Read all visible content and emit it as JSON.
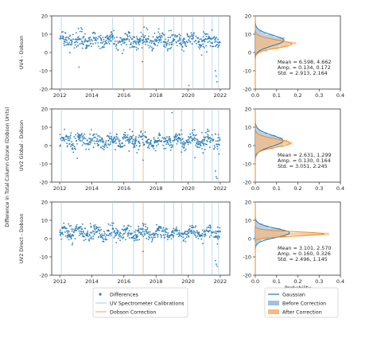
{
  "figure": {
    "shared_ylabel": "Difference in Total Column Ozone (Dobson Units)",
    "hist_xlabel": "Probability",
    "legend_left": [
      "Differences",
      "UV Spectrometer Calibrations",
      "Dobson Correction"
    ],
    "legend_right": [
      "Gaussian",
      "Before Correction",
      "After Correction"
    ]
  },
  "colors": {
    "points": "#2e7fb8",
    "calibration": "#a9cbe8",
    "dobson": "#f2a35e",
    "gaussian": "#1f77b4",
    "before": "#9dc0e4",
    "after": "#f7b97c",
    "after_line": "#f08a24",
    "axis": "#333333"
  },
  "chart_data": [
    {
      "type": "scatter",
      "panel": "UV4",
      "ylabel": "UV4 - Dobson",
      "xlim": [
        2011.5,
        2022.6
      ],
      "ylim": [
        -20,
        20
      ],
      "xticks": [
        2012,
        2014,
        2016,
        2018,
        2020,
        2022
      ],
      "yticks": [
        -20,
        -10,
        0,
        10,
        20
      ],
      "calibrations": [
        2012.1,
        2015.3,
        2016.6,
        2018.5,
        2019.1,
        2019.6,
        2020.3,
        2021.0,
        2021.5,
        2021.9
      ],
      "dobson_correction": 2017.2,
      "series": [
        {
          "name": "Differences",
          "base": 6.6,
          "spread": 2.9
        }
      ],
      "outliers": [
        [
          2013.2,
          -8
        ],
        [
          2017.15,
          -5
        ],
        [
          2020.05,
          -18
        ],
        [
          2021.7,
          -10
        ],
        [
          2021.75,
          -13
        ],
        [
          2021.8,
          -16
        ]
      ]
    },
    {
      "type": "scatter",
      "panel": "UV2 Global",
      "ylabel": "UV2 Global - Dobson",
      "xlim": [
        2011.5,
        2022.6
      ],
      "ylim": [
        -20,
        20
      ],
      "xticks": [
        2012,
        2014,
        2016,
        2018,
        2020,
        2022
      ],
      "yticks": [
        -20,
        -10,
        0,
        10,
        20
      ],
      "calibrations": [
        2012.1,
        2015.3,
        2016.6,
        2018.5,
        2019.1,
        2019.6,
        2020.3,
        2021.0,
        2021.5,
        2021.9
      ],
      "dobson_correction": 2017.2,
      "series": [
        {
          "name": "Differences",
          "base": 2.6,
          "spread": 3.0
        }
      ],
      "outliers": [
        [
          2013.1,
          -7
        ],
        [
          2017.2,
          -8
        ],
        [
          2019.0,
          18
        ],
        [
          2021.7,
          -14
        ],
        [
          2021.75,
          -17
        ],
        [
          2021.8,
          -18
        ]
      ]
    },
    {
      "type": "scatter",
      "panel": "UV2 Direct",
      "ylabel": "UV2 Direct - Dobson",
      "xlim": [
        2011.5,
        2022.6
      ],
      "ylim": [
        -20,
        20
      ],
      "xticks": [
        2012,
        2014,
        2016,
        2018,
        2020,
        2022
      ],
      "yticks": [
        -20,
        -10,
        0,
        10,
        20
      ],
      "calibrations": [
        2012.1,
        2015.3,
        2016.6,
        2018.5,
        2019.1,
        2019.6,
        2020.3,
        2021.0,
        2021.5,
        2021.9
      ],
      "dobson_correction": 2017.2,
      "series": [
        {
          "name": "Differences",
          "base": 3.1,
          "spread": 2.5
        }
      ],
      "outliers": [
        [
          2012.7,
          7
        ],
        [
          2017.2,
          -7
        ],
        [
          2021.7,
          -12
        ],
        [
          2021.75,
          -14
        ],
        [
          2021.8,
          -15
        ]
      ]
    },
    {
      "type": "bar",
      "panel": "UV4 histogram",
      "orientation": "horizontal",
      "xlim": [
        0.0,
        0.4
      ],
      "ylim": [
        -20,
        20
      ],
      "xticks": [
        0.0,
        0.1,
        0.2,
        0.3,
        0.4
      ],
      "yticks": [
        -20,
        -10,
        0,
        10,
        20
      ],
      "series": [
        {
          "name": "Before Correction",
          "mean": 6.598,
          "std": 2.913,
          "amp": 0.134
        },
        {
          "name": "After Correction",
          "mean": 4.662,
          "std": 2.164,
          "amp": 0.172
        }
      ],
      "stats": {
        "mean": "Mean = 6.598, 4.662",
        "amp": "Amp. = 0.134, 0.172",
        "std": "Std. = 2.913, 2.164"
      }
    },
    {
      "type": "bar",
      "panel": "UV2 Global histogram",
      "orientation": "horizontal",
      "xlim": [
        0.0,
        0.4
      ],
      "ylim": [
        -20,
        20
      ],
      "xticks": [
        0.0,
        0.1,
        0.2,
        0.3,
        0.4
      ],
      "yticks": [
        -20,
        -10,
        0,
        10,
        20
      ],
      "series": [
        {
          "name": "Before Correction",
          "mean": 2.631,
          "std": 3.051,
          "amp": 0.13
        },
        {
          "name": "After Correction",
          "mean": 1.299,
          "std": 2.245,
          "amp": 0.164
        }
      ],
      "stats": {
        "mean": "Mean = 2.631, 1.299",
        "amp": "Amp. = 0.130, 0.164",
        "std": "Std. = 3.051, 2.245"
      }
    },
    {
      "type": "bar",
      "panel": "UV2 Direct histogram",
      "orientation": "horizontal",
      "xlim": [
        0.0,
        0.4
      ],
      "ylim": [
        -20,
        20
      ],
      "xticks": [
        0.0,
        0.1,
        0.2,
        0.3,
        0.4
      ],
      "yticks": [
        -20,
        -10,
        0,
        10,
        20
      ],
      "series": [
        {
          "name": "Before Correction",
          "mean": 3.101,
          "std": 2.496,
          "amp": 0.16
        },
        {
          "name": "After Correction",
          "mean": 2.57,
          "std": 1.145,
          "amp": 0.326
        }
      ],
      "stats": {
        "mean": "Mean = 3.101, 2.570",
        "amp": "Amp. = 0.160, 0.326",
        "std": "Std. = 2.496, 1.145"
      }
    }
  ]
}
